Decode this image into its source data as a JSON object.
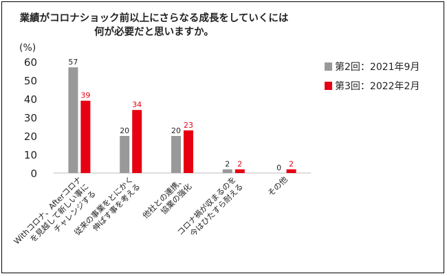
{
  "chart_data": {
    "type": "bar",
    "title_lines": [
      "業績がコロナショック前以上にさらなる成長をしていくには",
      "何が必要だと思いますか。"
    ],
    "ylabel": "(%)",
    "ylim": [
      0,
      60
    ],
    "yticks": [
      0,
      10,
      20,
      30,
      40,
      50,
      60
    ],
    "categories": [
      [
        "Withコロナ、Afterコロナ",
        "を見越して新しい事に",
        "チャレンジする"
      ],
      [
        "従来の事業をとにかく",
        "伸ばす事を考える"
      ],
      [
        "他社との連携、",
        "協業の強化"
      ],
      [
        "コロナ禍が収まるのを",
        "今はひたすら耐える"
      ],
      [
        "その他"
      ]
    ],
    "series": [
      {
        "name": "第2回：2021年9月",
        "color": "#999999",
        "label_color": "#222222",
        "values": [
          57,
          20,
          20,
          2,
          0
        ]
      },
      {
        "name": "第3回：2022年2月",
        "color": "#e60012",
        "label_color": "#e60012",
        "values": [
          39,
          34,
          23,
          2,
          2
        ]
      }
    ],
    "legend_position": "right",
    "grid": false
  }
}
